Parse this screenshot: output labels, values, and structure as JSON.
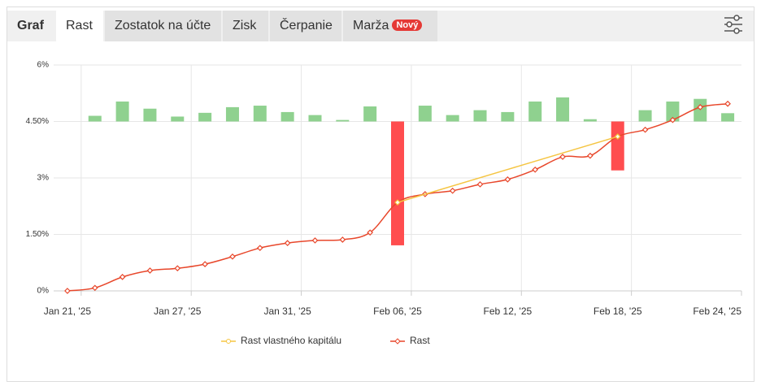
{
  "tabs": [
    "Graf",
    "Rast",
    "Zostatok na účte",
    "Zisk",
    "Čerpanie",
    "Marža"
  ],
  "badge": "Nový",
  "chart_data": {
    "type": "line",
    "categories": [
      "Jan 21, '25",
      null,
      null,
      null,
      "Jan 27, '25",
      null,
      null,
      null,
      "Jan 31, '25",
      null,
      null,
      null,
      "Feb 06, '25",
      null,
      null,
      null,
      "Feb 12, '25",
      null,
      null,
      null,
      "Feb 18, '25",
      null,
      null,
      null,
      "Feb 24, '25"
    ],
    "ylim": [
      0,
      6
    ],
    "yticks": [
      {
        "value": 0,
        "label": "0%"
      },
      {
        "value": 1.5,
        "label": "1.50%"
      },
      {
        "value": 3,
        "label": "3%"
      },
      {
        "value": 4.5,
        "label": "4.50%"
      },
      {
        "value": 6,
        "label": "6%"
      }
    ],
    "grid": true,
    "bars": {
      "base": 4.5,
      "up_color": "#8fd18f",
      "down_color": "#ff4d4f",
      "values": [
        null,
        4.65,
        5.03,
        4.84,
        4.63,
        4.73,
        4.88,
        4.92,
        4.75,
        4.67,
        4.54,
        4.9,
        1.21,
        4.92,
        4.67,
        4.8,
        4.75,
        5.03,
        5.14,
        4.56,
        3.2,
        4.8,
        5.03,
        5.1,
        4.72
      ]
    },
    "series": [
      {
        "name": "Rast vlastného kapitálu",
        "color": "#f5c542",
        "values": [
          null,
          null,
          null,
          null,
          null,
          null,
          null,
          null,
          null,
          null,
          null,
          null,
          2.35,
          null,
          null,
          null,
          null,
          null,
          null,
          null,
          4.1,
          null,
          null,
          null,
          null
        ]
      },
      {
        "name": "Rast",
        "color": "#e8472b",
        "values": [
          0,
          0.08,
          0.37,
          0.54,
          0.6,
          0.71,
          0.91,
          1.14,
          1.27,
          1.34,
          1.36,
          1.55,
          2.35,
          2.57,
          2.66,
          2.83,
          2.96,
          3.22,
          3.56,
          3.59,
          4.1,
          4.28,
          4.54,
          4.88,
          4.97
        ]
      }
    ]
  }
}
